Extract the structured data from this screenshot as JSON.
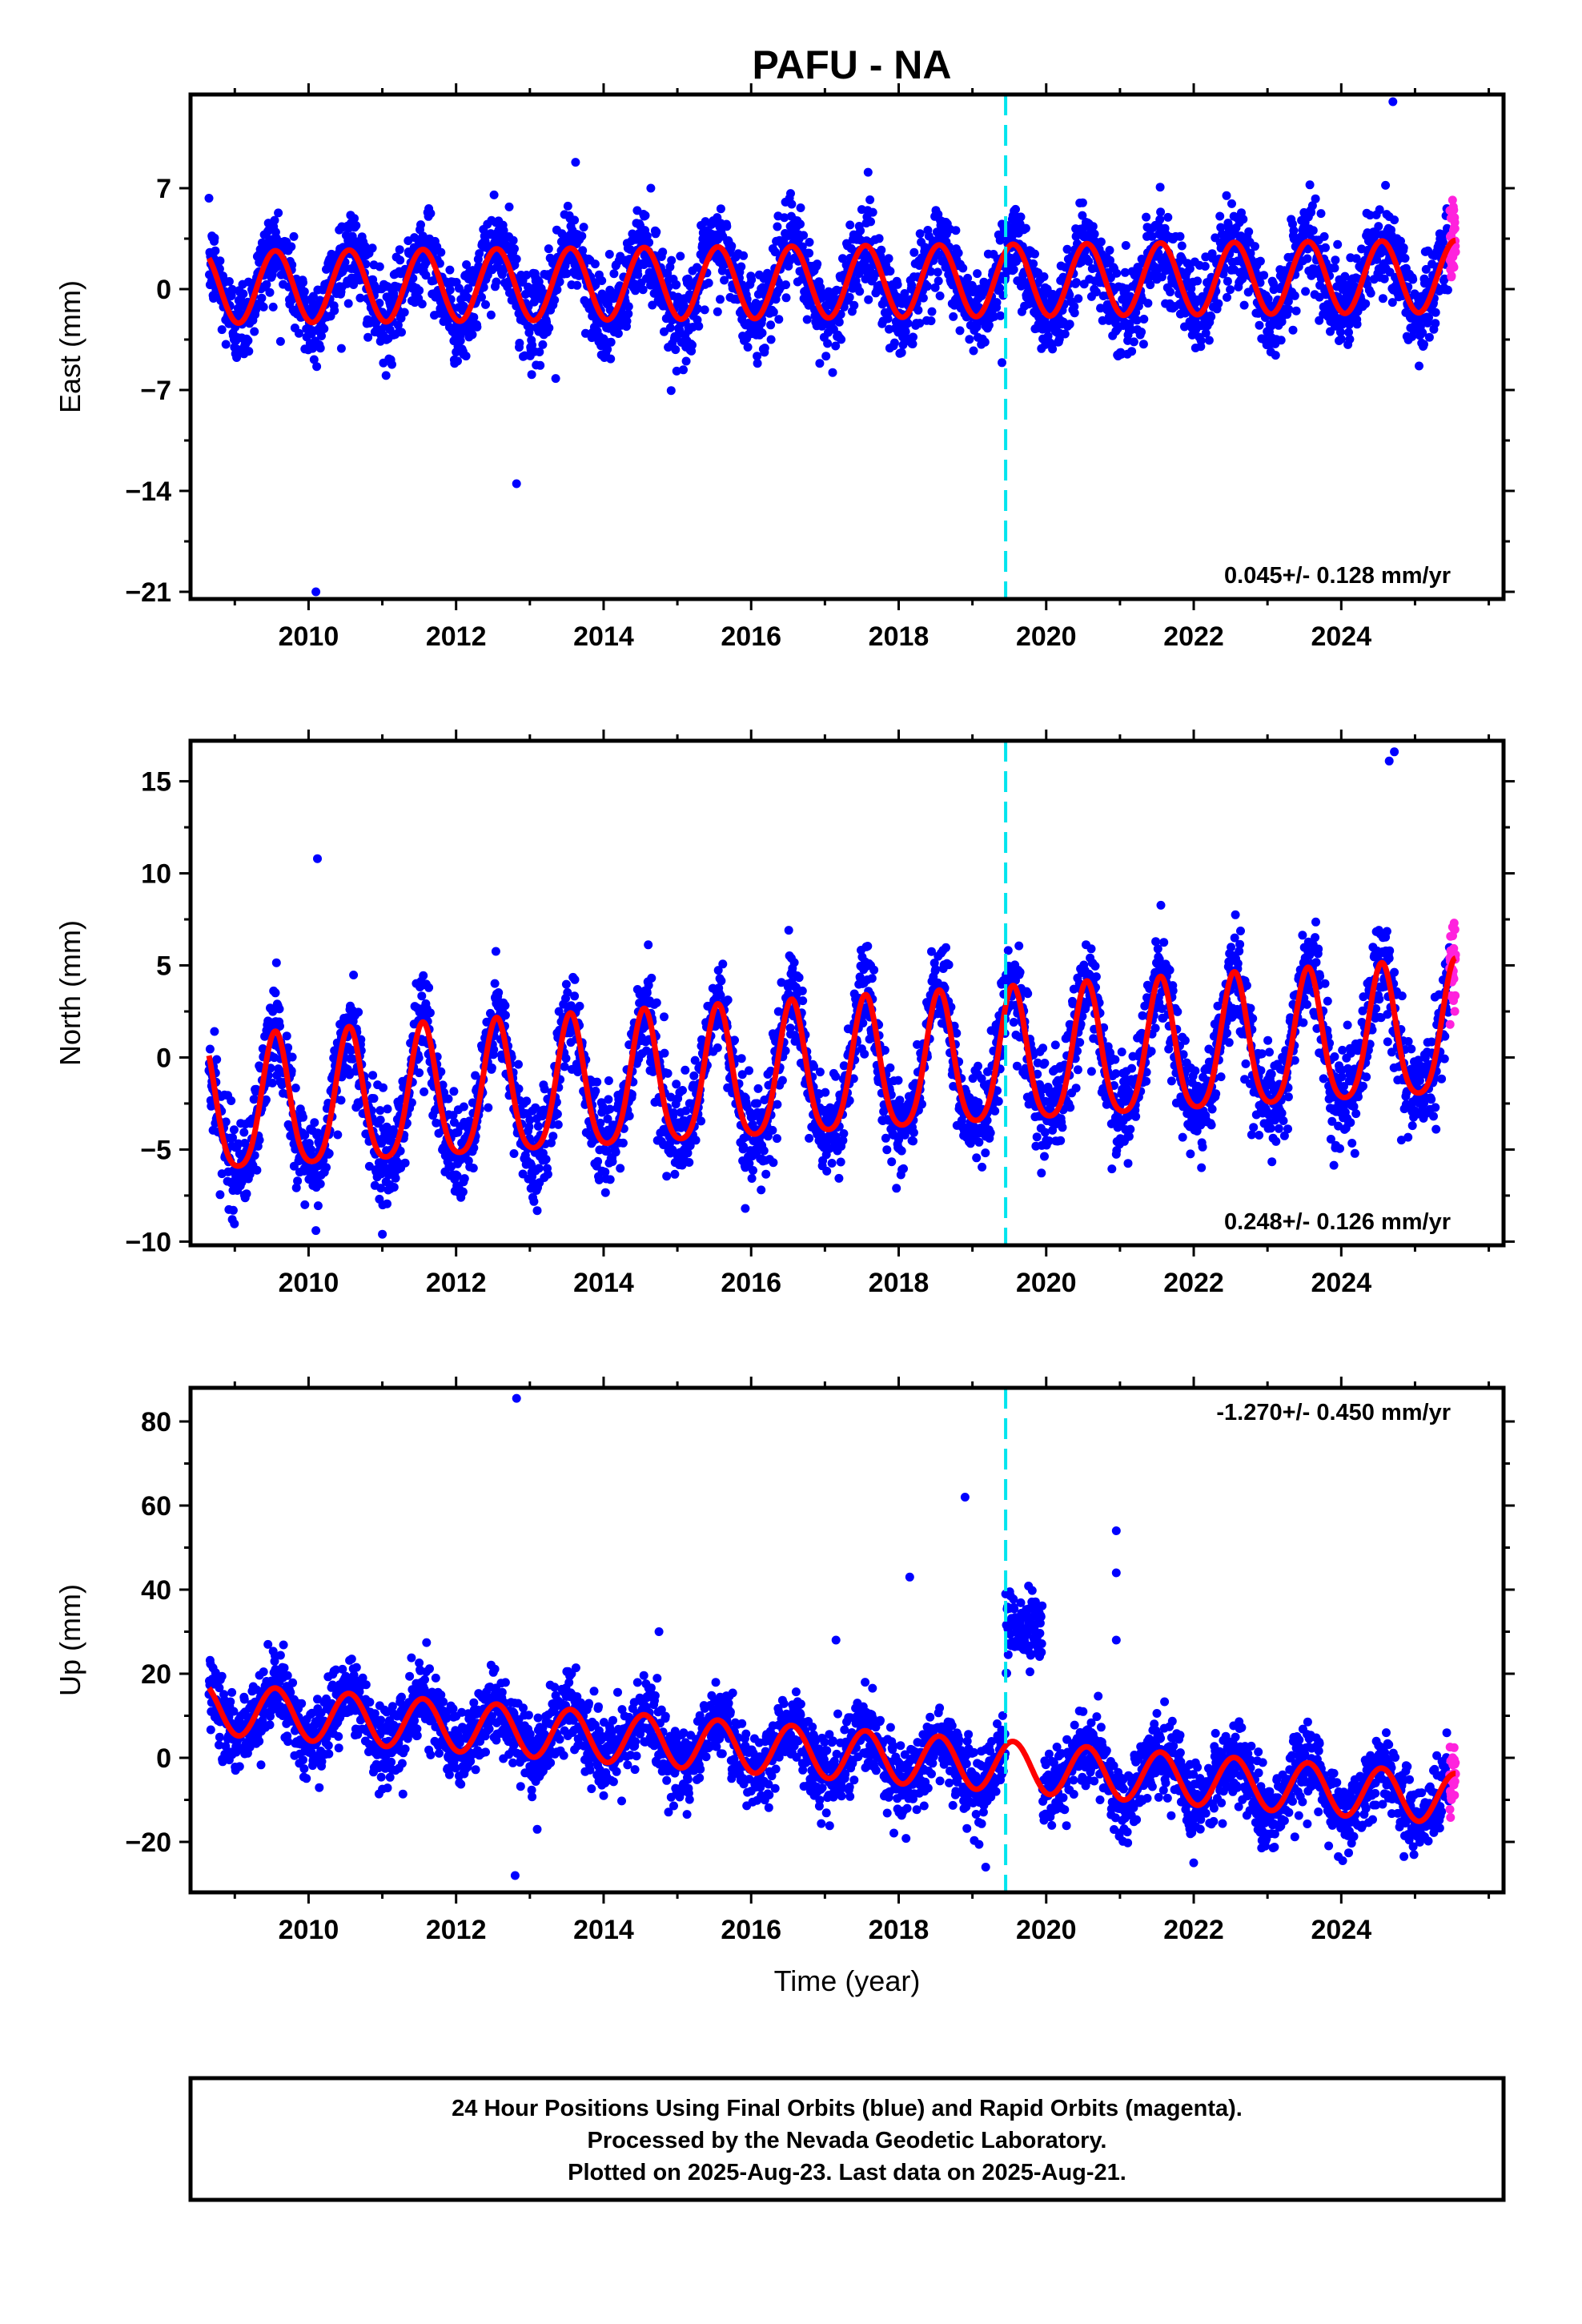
{
  "title": "PAFU - NA",
  "colors": {
    "final_orbits": "#0000ff",
    "rapid_orbits": "#ff22dd",
    "model": "#ff0000",
    "event_line": "#00e5ee"
  },
  "chart_data": [
    {
      "type": "scatter",
      "component": "East",
      "ylabel": "East (mm)",
      "xlabel": "",
      "xlim": [
        2008.4,
        2026.2
      ],
      "ylim": [
        -21.5,
        13.5
      ],
      "yticks": [
        -21,
        -14,
        -7,
        0,
        7
      ],
      "xticks": [
        2010,
        2012,
        2014,
        2016,
        2018,
        2020,
        2022,
        2024
      ],
      "rate_label": "0.045+/- 0.128 mm/yr",
      "rate_position": "bottom-right",
      "event_line_x": 2019.45,
      "data_start": 2008.65,
      "data_end": 2025.55,
      "rapid_start": 2025.47,
      "seasonal_amplitude_mm": 2.5,
      "scatter_sd_mm": 1.5,
      "rate_mm_per_yr": 0.045,
      "offset_mm": 0.5,
      "outliers": [
        {
          "x": 2010.1,
          "y": -21.0
        },
        {
          "x": 2012.82,
          "y": -13.5
        },
        {
          "x": 2013.35,
          "y": -6.2
        },
        {
          "x": 2013.62,
          "y": 8.8
        },
        {
          "x": 2024.7,
          "y": 13.0
        },
        {
          "x": 2024.6,
          "y": 7.2
        },
        {
          "x": 2019.4,
          "y": -5.1
        }
      ]
    },
    {
      "type": "scatter",
      "component": "North",
      "ylabel": "North (mm)",
      "xlabel": "",
      "xlim": [
        2008.4,
        2026.2
      ],
      "ylim": [
        -10.2,
        17.2
      ],
      "yticks": [
        -10,
        -5,
        0,
        5,
        10,
        15
      ],
      "xticks": [
        2010,
        2012,
        2014,
        2016,
        2018,
        2020,
        2022,
        2024
      ],
      "rate_label": "0.248+/- 0.126 mm/yr",
      "rate_position": "bottom-right",
      "event_line_x": 2019.45,
      "data_start": 2008.65,
      "data_end": 2025.55,
      "rapid_start": 2025.47,
      "seasonal_amplitude_mm": 3.6,
      "scatter_sd_mm": 1.3,
      "rate_mm_per_yr": 0.248,
      "offset_mm": -0.9,
      "outliers": [
        {
          "x": 2010.12,
          "y": 10.8
        },
        {
          "x": 2010.1,
          "y": -9.4
        },
        {
          "x": 2011.0,
          "y": -9.6
        },
        {
          "x": 2015.92,
          "y": -8.2
        },
        {
          "x": 2024.72,
          "y": 16.6
        },
        {
          "x": 2024.65,
          "y": 16.1
        },
        {
          "x": 2009.95,
          "y": -8.0
        }
      ]
    },
    {
      "type": "scatter",
      "component": "Up",
      "ylabel": "Up (mm)",
      "xlabel": "Time (year)",
      "xlim": [
        2008.4,
        2026.2
      ],
      "ylim": [
        -32,
        88
      ],
      "yticks": [
        -20,
        0,
        20,
        40,
        60,
        80
      ],
      "xticks": [
        2010,
        2012,
        2014,
        2016,
        2018,
        2020,
        2022,
        2024
      ],
      "rate_label": "-1.270+/- 0.450 mm/yr",
      "rate_position": "top-right",
      "event_line_x": 2019.45,
      "data_start": 2008.65,
      "data_end": 2025.55,
      "rapid_start": 2025.47,
      "seasonal_amplitude_mm": 6.0,
      "scatter_sd_mm": 4.5,
      "rate_mm_per_yr": -1.27,
      "offset_mm": 1.0,
      "anomaly": {
        "start": 2019.45,
        "end": 2019.95,
        "mean_mm": 31.0,
        "sd_mm": 4.0
      },
      "outliers": [
        {
          "x": 2012.82,
          "y": 85.5
        },
        {
          "x": 2012.8,
          "y": -28.0
        },
        {
          "x": 2013.1,
          "y": -17.0
        },
        {
          "x": 2018.9,
          "y": 62.0
        },
        {
          "x": 2018.15,
          "y": 43.0
        },
        {
          "x": 2020.95,
          "y": 54.0
        },
        {
          "x": 2020.95,
          "y": 44.0
        },
        {
          "x": 2020.95,
          "y": 28.0
        },
        {
          "x": 2014.75,
          "y": 30.0
        },
        {
          "x": 2017.15,
          "y": 28.0
        },
        {
          "x": 2019.18,
          "y": -26.0
        }
      ]
    }
  ],
  "footer": {
    "lines": [
      "24 Hour Positions Using Final Orbits (blue) and Rapid Orbits (magenta).",
      "Processed by the Nevada Geodetic Laboratory.",
      "Plotted on 2025-Aug-23. Last data on 2025-Aug-21."
    ]
  }
}
